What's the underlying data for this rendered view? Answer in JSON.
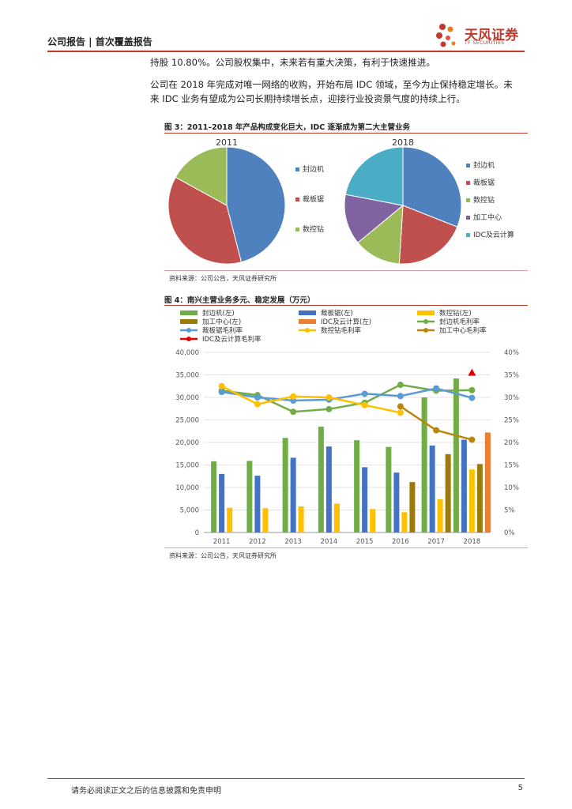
{
  "header": {
    "title": "公司报告 | 首次覆盖报告"
  },
  "logo": {
    "name": "天风证券",
    "sub": "TF SECURITIES"
  },
  "paragraphs": [
    "持股 10.80%。公司股权集中，未来若有重大决策，有利于快速推进。",
    "公司在 2018 年完成对唯一网络的收购，开始布局 IDC 领域，至今为止保持稳定增长。未",
    "来 IDC 业务有望成为公司长期持续增长点，迎接行业投资景气度的持续上行。"
  ],
  "figure3": {
    "title": "图 3：2011–2018 年产品构成变化巨大，IDC 逐渐成为第二大主营业务",
    "source": "资料来源：公司公告，天风证券研究所",
    "colors": [
      "#4e81bd",
      "#c0504e",
      "#9bbb59",
      "#8064a2",
      "#4bacc6"
    ]
  },
  "figure4": {
    "title": "图 4：南兴主营业务多元、稳定发展（万元）",
    "source": "资料来源：公司公告，天风证券研究所"
  },
  "chart_data": [
    {
      "type": "pie",
      "title": "2011",
      "labels": [
        "封边机",
        "裁板锯",
        "数控钻"
      ],
      "values": [
        46,
        37,
        17
      ]
    },
    {
      "type": "pie",
      "title": "2018",
      "labels": [
        "封边机",
        "裁板锯",
        "数控钻",
        "加工中心",
        "IDC及云计算"
      ],
      "values": [
        31,
        20,
        13,
        14,
        22
      ]
    },
    {
      "type": "bar",
      "categories": [
        "2011",
        "2012",
        "2013",
        "2014",
        "2015",
        "2016",
        "2017",
        "2018"
      ],
      "ylim": [
        0,
        40000
      ],
      "y2lim": [
        0,
        40
      ],
      "yticks": [
        "0",
        "5,000",
        "10,000",
        "15,000",
        "20,000",
        "25,000",
        "30,000",
        "35,000",
        "40,000"
      ],
      "y2ticks": [
        "0%",
        "5%",
        "10%",
        "15%",
        "20%",
        "25%",
        "30%",
        "35%",
        "40%"
      ],
      "bar_series": [
        {
          "name": "封边机(左)",
          "color": "#70ad47",
          "values": [
            15800,
            15900,
            21000,
            23500,
            20500,
            19000,
            30000,
            34200
          ]
        },
        {
          "name": "裁板锯(左)",
          "color": "#4472c4",
          "values": [
            13000,
            12600,
            16600,
            19100,
            14500,
            13300,
            19300,
            20600
          ]
        },
        {
          "name": "数控钻(左)",
          "color": "#ffc000",
          "values": [
            5500,
            5400,
            5800,
            6400,
            5200,
            4500,
            7400,
            14000
          ]
        },
        {
          "name": "加工中心(左)",
          "color": "#9c7a0b",
          "values": [
            null,
            null,
            null,
            null,
            null,
            11200,
            17400,
            15200
          ]
        },
        {
          "name": "IDC及云计算(左)",
          "color": "#ed7d31",
          "values": [
            null,
            null,
            null,
            null,
            null,
            null,
            null,
            22200
          ]
        }
      ],
      "line_series": [
        {
          "name": "封边机毛利率",
          "color": "#70ad47",
          "values": [
            31.5,
            30.5,
            26.8,
            27.4,
            28.8,
            32.8,
            31.5,
            31.6
          ]
        },
        {
          "name": "裁板锯毛利率",
          "color": "#5b9bd5",
          "values": [
            31.2,
            30.0,
            29.3,
            29.5,
            30.8,
            30.3,
            32.0,
            29.9
          ]
        },
        {
          "name": "数控钻毛利率",
          "color": "#ffc000",
          "values": [
            32.5,
            28.5,
            30.2,
            30.0,
            28.3,
            26.6,
            null,
            null
          ]
        },
        {
          "name": "加工中心毛利率",
          "color": "#b8860b",
          "values": [
            null,
            null,
            null,
            null,
            null,
            28.0,
            22.7,
            20.6
          ]
        },
        {
          "name": "IDC及云计算毛利率",
          "color": "#e00000",
          "values": [
            null,
            null,
            null,
            null,
            null,
            null,
            null,
            35.5
          ]
        }
      ]
    }
  ],
  "footer": {
    "text": "请务必阅读正文之后的信息披露和免责申明",
    "page": "5"
  }
}
